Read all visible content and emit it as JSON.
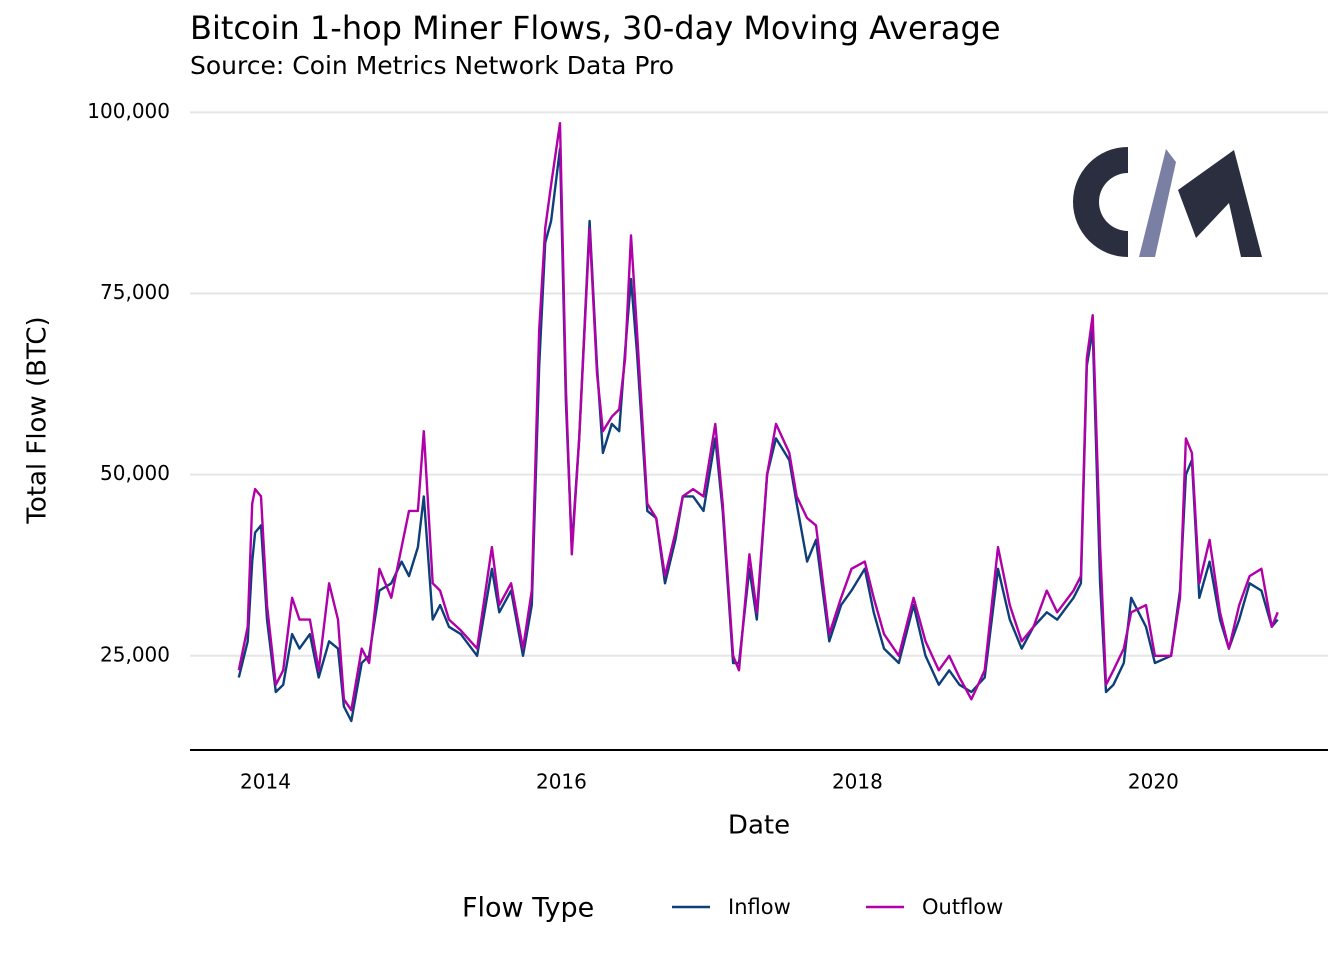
{
  "chart_data": {
    "type": "line",
    "title": "Bitcoin 1-hop Miner Flows, 30-day Moving Average",
    "subtitle": "Source: Coin Metrics Network Data Pro",
    "x_label": "Date",
    "y_label": "Total Flow (BTC)",
    "legend_title": "Flow Type",
    "legend": "bottom",
    "grid": true,
    "xlim": [
      2013.49,
      2021.18
    ],
    "xticks": [
      2014,
      2016,
      2018,
      2020
    ],
    "ylim": [
      12000,
      101700
    ],
    "yticks": [
      {
        "value": 25000,
        "label": "25,000"
      },
      {
        "value": 50000,
        "label": "50,000"
      },
      {
        "value": 75000,
        "label": "75,000"
      },
      {
        "value": 100000,
        "label": "100,000"
      }
    ],
    "x": [
      2013.82,
      2013.88,
      2013.91,
      2013.93,
      2013.97,
      2014.01,
      2014.07,
      2014.12,
      2014.18,
      2014.23,
      2014.3,
      2014.36,
      2014.43,
      2014.49,
      2014.53,
      2014.58,
      2014.65,
      2014.7,
      2014.77,
      2014.85,
      2014.92,
      2014.97,
      2015.03,
      2015.07,
      2015.13,
      2015.18,
      2015.24,
      2015.32,
      2015.43,
      2015.53,
      2015.58,
      2015.66,
      2015.74,
      2015.8,
      2015.85,
      2015.89,
      2015.93,
      2015.99,
      2016.03,
      2016.07,
      2016.12,
      2016.19,
      2016.24,
      2016.28,
      2016.34,
      2016.39,
      2016.43,
      2016.47,
      2016.51,
      2016.58,
      2016.64,
      2016.7,
      2016.77,
      2016.82,
      2016.89,
      2016.96,
      2017.04,
      2017.09,
      2017.16,
      2017.2,
      2017.27,
      2017.32,
      2017.39,
      2017.45,
      2017.54,
      2017.59,
      2017.66,
      2017.72,
      2017.81,
      2017.89,
      2017.96,
      2018.05,
      2018.11,
      2018.18,
      2018.28,
      2018.38,
      2018.46,
      2018.55,
      2018.62,
      2018.69,
      2018.77,
      2018.86,
      2018.95,
      2019.03,
      2019.11,
      2019.19,
      2019.28,
      2019.35,
      2019.46,
      2019.51,
      2019.55,
      2019.59,
      2019.64,
      2019.68,
      2019.73,
      2019.8,
      2019.85,
      2019.95,
      2020.01,
      2020.12,
      2020.18,
      2020.22,
      2020.26,
      2020.31,
      2020.38,
      2020.45,
      2020.51,
      2020.58,
      2020.65,
      2020.73,
      2020.8,
      2020.84
    ],
    "series": [
      {
        "name": "Inflow",
        "color": "#0d3f7a",
        "values": [
          22000,
          27000,
          38000,
          42000,
          43000,
          30000,
          20000,
          21000,
          28000,
          26000,
          28000,
          22000,
          27000,
          26000,
          18000,
          16000,
          24000,
          25000,
          34000,
          35000,
          38000,
          36000,
          40000,
          47000,
          30000,
          32000,
          29000,
          28000,
          25000,
          37000,
          31000,
          34000,
          25000,
          32000,
          65000,
          82000,
          85000,
          95000,
          60000,
          40000,
          55000,
          85000,
          65000,
          53000,
          57000,
          56000,
          67000,
          77000,
          67000,
          45000,
          44000,
          35000,
          41000,
          47000,
          47000,
          45000,
          55000,
          45000,
          24000,
          24000,
          37000,
          30000,
          50000,
          55000,
          52000,
          46000,
          38000,
          41000,
          27000,
          32000,
          34000,
          37000,
          31000,
          26000,
          24000,
          32000,
          25000,
          21000,
          23000,
          21000,
          20000,
          22000,
          37000,
          30000,
          26000,
          29000,
          31000,
          30000,
          33000,
          35000,
          65000,
          70000,
          35000,
          20000,
          21000,
          24000,
          33000,
          29000,
          24000,
          25000,
          34000,
          50000,
          52000,
          33000,
          38000,
          30000,
          26000,
          30000,
          35000,
          34000,
          29000,
          30000
        ]
      },
      {
        "name": "Outflow",
        "color": "#b000a8",
        "values": [
          23000,
          29000,
          46000,
          48000,
          47000,
          32000,
          21000,
          23000,
          33000,
          30000,
          30000,
          23000,
          35000,
          30000,
          19000,
          17500,
          26000,
          24000,
          37000,
          33000,
          40000,
          45000,
          45000,
          56000,
          35000,
          34000,
          30000,
          28500,
          26000,
          40000,
          32000,
          35000,
          26000,
          34000,
          70000,
          84000,
          90000,
          98500,
          62000,
          39000,
          55000,
          84000,
          64000,
          56000,
          58000,
          59000,
          66000,
          83000,
          70000,
          46000,
          44000,
          36000,
          42000,
          47000,
          48000,
          47000,
          57000,
          46000,
          25000,
          23000,
          39000,
          31000,
          50000,
          57000,
          53000,
          47000,
          44000,
          43000,
          28000,
          33000,
          37000,
          38000,
          33000,
          28000,
          25000,
          33000,
          27000,
          23000,
          25000,
          22000,
          19000,
          23000,
          40000,
          32000,
          27000,
          29000,
          34000,
          31000,
          34000,
          36000,
          66000,
          72000,
          40000,
          21000,
          23000,
          26000,
          31000,
          32000,
          25000,
          25000,
          33000,
          55000,
          53000,
          35000,
          41000,
          31000,
          26000,
          32000,
          36000,
          37000,
          29000,
          31000
        ]
      }
    ]
  }
}
